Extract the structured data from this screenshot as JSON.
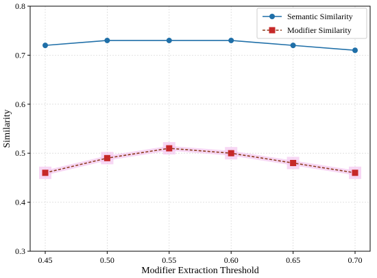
{
  "chart_data": {
    "type": "line",
    "xlabel": "Modifier Extraction Threshold",
    "ylabel": "Similarity",
    "x": [
      0.45,
      0.5,
      0.55,
      0.6,
      0.65,
      0.7
    ],
    "x_tick_labels": [
      "0.45",
      "0.50",
      "0.55",
      "0.60",
      "0.65",
      "0.70"
    ],
    "ylim": [
      0.3,
      0.8
    ],
    "y_ticks": [
      0.3,
      0.4,
      0.5,
      0.6,
      0.7,
      0.8
    ],
    "y_tick_labels": [
      "0.3",
      "0.4",
      "0.5",
      "0.6",
      "0.7",
      "0.8"
    ],
    "grid": true,
    "legend_position": "top-right",
    "series": [
      {
        "name": "Semantic Similarity",
        "values": [
          0.72,
          0.73,
          0.73,
          0.73,
          0.72,
          0.71
        ],
        "color": "#1f6fa8",
        "marker": "circle",
        "line_style": "solid"
      },
      {
        "name": "Modifier Similarity",
        "values": [
          0.46,
          0.49,
          0.51,
          0.5,
          0.48,
          0.46
        ],
        "color": "#8b3a1a",
        "marker_color": "#c62828",
        "highlight_color": "#f4c6f0",
        "marker": "square",
        "line_style": "dashed"
      }
    ]
  }
}
